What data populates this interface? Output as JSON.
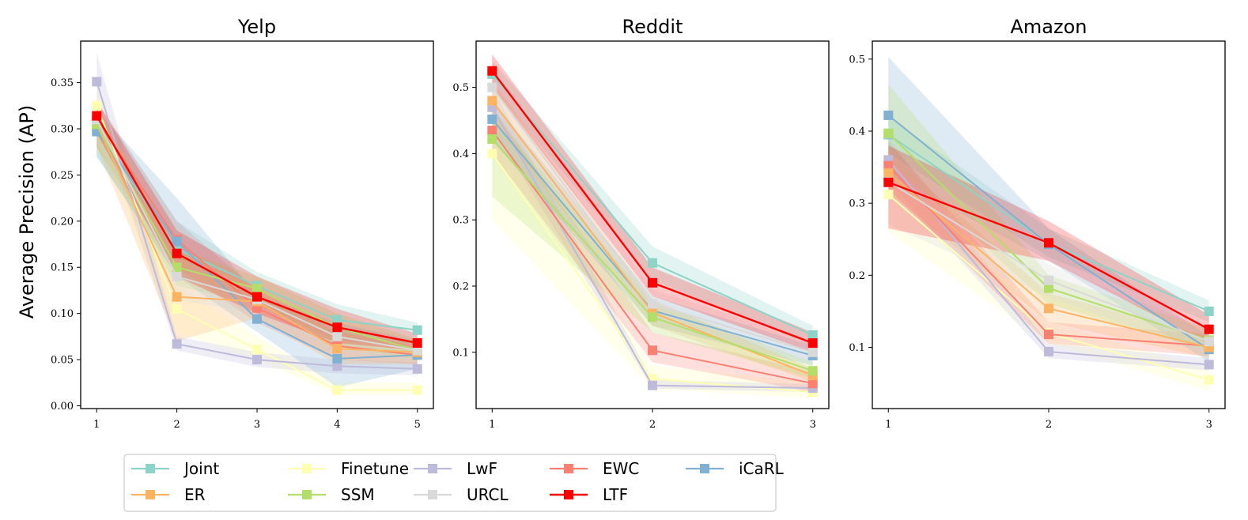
{
  "chart_data": {
    "type": "line",
    "ylabel": "Average Precision (AP)",
    "legend": {
      "location": "bottom-center",
      "columns": 5,
      "entries": [
        "Joint",
        "Finetune",
        "LwF",
        "EWC",
        "iCaRL",
        "ER",
        "SSM",
        "URCL",
        "LTF"
      ]
    },
    "series_styles": [
      {
        "name": "Joint",
        "color": "#8dd3c7"
      },
      {
        "name": "Finetune",
        "color": "#ffffb3"
      },
      {
        "name": "LwF",
        "color": "#bebada"
      },
      {
        "name": "EWC",
        "color": "#fb8072"
      },
      {
        "name": "iCaRL",
        "color": "#80b1d3"
      },
      {
        "name": "ER",
        "color": "#fdb462"
      },
      {
        "name": "SSM",
        "color": "#b3de69"
      },
      {
        "name": "URCL",
        "color": "#d9d9d9"
      },
      {
        "name": "LTF",
        "color": "#ff0000"
      }
    ],
    "panels": [
      {
        "title": "Yelp",
        "x": [
          1,
          2,
          3,
          4,
          5
        ],
        "xlim": [
          0.8,
          5.2
        ],
        "ylim": [
          -0.003,
          0.395
        ],
        "yticks": [
          "0.00",
          "0.05",
          "0.10",
          "0.15",
          "0.20",
          "0.25",
          "0.30",
          "0.35"
        ],
        "series": [
          {
            "name": "Joint",
            "values": [
              0.3,
              0.17,
              0.13,
              0.093,
              0.082
            ],
            "lower": [
              0.27,
              0.14,
              0.11,
              0.07,
              0.065
            ],
            "upper": [
              0.33,
              0.2,
              0.145,
              0.11,
              0.09
            ]
          },
          {
            "name": "Finetune",
            "values": [
              0.325,
              0.105,
              0.061,
              0.017,
              0.017
            ],
            "lower": [
              0.29,
              0.08,
              0.05,
              0.012,
              0.012
            ],
            "upper": [
              0.35,
              0.13,
              0.075,
              0.025,
              0.025
            ]
          },
          {
            "name": "LwF",
            "values": [
              0.351,
              0.067,
              0.05,
              0.043,
              0.04
            ],
            "lower": [
              0.32,
              0.06,
              0.042,
              0.035,
              0.033
            ],
            "upper": [
              0.382,
              0.075,
              0.058,
              0.05,
              0.047
            ]
          },
          {
            "name": "EWC",
            "values": [
              0.31,
              0.18,
              0.106,
              0.065,
              0.055
            ],
            "lower": [
              0.28,
              0.15,
              0.09,
              0.05,
              0.045
            ],
            "upper": [
              0.33,
              0.2,
              0.125,
              0.08,
              0.065
            ]
          },
          {
            "name": "iCaRL",
            "values": [
              0.297,
              0.178,
              0.094,
              0.051,
              0.055
            ],
            "lower": [
              0.27,
              0.14,
              0.08,
              0.02,
              0.04
            ],
            "upper": [
              0.32,
              0.225,
              0.12,
              0.09,
              0.07
            ]
          },
          {
            "name": "ER",
            "values": [
              0.305,
              0.118,
              0.113,
              0.062,
              0.058
            ],
            "lower": [
              0.28,
              0.07,
              0.095,
              0.045,
              0.045
            ],
            "upper": [
              0.325,
              0.165,
              0.13,
              0.08,
              0.07
            ]
          },
          {
            "name": "SSM",
            "values": [
              0.305,
              0.15,
              0.127,
              0.085,
              0.06
            ],
            "lower": [
              0.28,
              0.13,
              0.11,
              0.065,
              0.05
            ],
            "upper": [
              0.325,
              0.17,
              0.14,
              0.1,
              0.072
            ]
          },
          {
            "name": "URCL",
            "values": [
              0.31,
              0.14,
              0.115,
              0.075,
              0.06
            ],
            "lower": [
              0.285,
              0.115,
              0.1,
              0.06,
              0.048
            ],
            "upper": [
              0.33,
              0.16,
              0.13,
              0.09,
              0.072
            ]
          },
          {
            "name": "LTF",
            "values": [
              0.314,
              0.165,
              0.118,
              0.085,
              0.068
            ],
            "lower": [
              0.295,
              0.14,
              0.1,
              0.068,
              0.06
            ],
            "upper": [
              0.33,
              0.19,
              0.14,
              0.105,
              0.078
            ]
          }
        ]
      },
      {
        "title": "Reddit",
        "x": [
          1,
          2,
          3
        ],
        "xlim": [
          0.9,
          3.1
        ],
        "ylim": [
          0.015,
          0.57
        ],
        "yticks": [
          "0.1",
          "0.2",
          "0.3",
          "0.4",
          "0.5"
        ],
        "series": [
          {
            "name": "Joint",
            "values": [
              0.52,
              0.235,
              0.126
            ],
            "lower": [
              0.5,
              0.21,
              0.11
            ],
            "upper": [
              0.54,
              0.26,
              0.14
            ]
          },
          {
            "name": "Finetune",
            "values": [
              0.4,
              0.06,
              0.04
            ],
            "lower": [
              0.3,
              0.045,
              0.03
            ],
            "upper": [
              0.45,
              0.08,
              0.055
            ]
          },
          {
            "name": "LwF",
            "values": [
              0.47,
              0.05,
              0.046
            ],
            "lower": [
              0.44,
              0.045,
              0.04
            ],
            "upper": [
              0.5,
              0.058,
              0.052
            ]
          },
          {
            "name": "EWC",
            "values": [
              0.435,
              0.103,
              0.053
            ],
            "lower": [
              0.4,
              0.085,
              0.04
            ],
            "upper": [
              0.47,
              0.13,
              0.07
            ]
          },
          {
            "name": "iCaRL",
            "values": [
              0.452,
              0.163,
              0.095
            ],
            "lower": [
              0.42,
              0.14,
              0.08
            ],
            "upper": [
              0.48,
              0.185,
              0.11
            ]
          },
          {
            "name": "ER",
            "values": [
              0.48,
              0.16,
              0.065
            ],
            "lower": [
              0.45,
              0.14,
              0.055
            ],
            "upper": [
              0.51,
              0.18,
              0.075
            ]
          },
          {
            "name": "SSM",
            "values": [
              0.422,
              0.153,
              0.072
            ],
            "lower": [
              0.335,
              0.13,
              0.06
            ],
            "upper": [
              0.46,
              0.175,
              0.085
            ]
          },
          {
            "name": "URCL",
            "values": [
              0.5,
              0.173,
              0.1
            ],
            "lower": [
              0.47,
              0.15,
              0.085
            ],
            "upper": [
              0.53,
              0.195,
              0.115
            ]
          },
          {
            "name": "LTF",
            "values": [
              0.525,
              0.205,
              0.114
            ],
            "lower": [
              0.5,
              0.185,
              0.1
            ],
            "upper": [
              0.55,
              0.228,
              0.13
            ]
          }
        ]
      },
      {
        "title": "Amazon",
        "x": [
          1,
          2,
          3
        ],
        "xlim": [
          0.9,
          3.1
        ],
        "ylim": [
          0.015,
          0.525
        ],
        "yticks": [
          "0.1",
          "0.2",
          "0.3",
          "0.4",
          "0.5"
        ],
        "series": [
          {
            "name": "Joint",
            "values": [
              0.395,
              0.245,
              0.15
            ],
            "lower": [
              0.37,
              0.225,
              0.135
            ],
            "upper": [
              0.42,
              0.265,
              0.165
            ]
          },
          {
            "name": "Finetune",
            "values": [
              0.312,
              0.12,
              0.055
            ],
            "lower": [
              0.26,
              0.105,
              0.04
            ],
            "upper": [
              0.345,
              0.135,
              0.07
            ]
          },
          {
            "name": "LwF",
            "values": [
              0.36,
              0.094,
              0.076
            ],
            "lower": [
              0.33,
              0.085,
              0.068
            ],
            "upper": [
              0.39,
              0.105,
              0.085
            ]
          },
          {
            "name": "EWC",
            "values": [
              0.352,
              0.118,
              0.102
            ],
            "lower": [
              0.32,
              0.105,
              0.088
            ],
            "upper": [
              0.385,
              0.135,
              0.118
            ]
          },
          {
            "name": "iCaRL",
            "values": [
              0.422,
              0.243,
              0.097
            ],
            "lower": [
              0.34,
              0.22,
              0.08
            ],
            "upper": [
              0.503,
              0.265,
              0.115
            ]
          },
          {
            "name": "ER",
            "values": [
              0.342,
              0.154,
              0.1
            ],
            "lower": [
              0.315,
              0.135,
              0.085
            ],
            "upper": [
              0.37,
              0.175,
              0.115
            ]
          },
          {
            "name": "SSM",
            "values": [
              0.397,
              0.182,
              0.11
            ],
            "lower": [
              0.36,
              0.16,
              0.095
            ],
            "upper": [
              0.465,
              0.2,
              0.125
            ]
          },
          {
            "name": "URCL",
            "values": [
              0.33,
              0.193,
              0.108
            ],
            "lower": [
              0.27,
              0.17,
              0.09
            ],
            "upper": [
              0.37,
              0.215,
              0.125
            ]
          },
          {
            "name": "LTF",
            "values": [
              0.329,
              0.245,
              0.125
            ],
            "lower": [
              0.265,
              0.22,
              0.105
            ],
            "upper": [
              0.38,
              0.275,
              0.145
            ]
          }
        ]
      }
    ]
  }
}
